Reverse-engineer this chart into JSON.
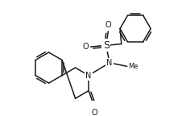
{
  "background": "#ffffff",
  "line_color": "#1a1a1a",
  "line_width": 1.1,
  "font_size": 7.0,
  "figsize": [
    2.32,
    1.44
  ],
  "dpi": 100,
  "xlim": [
    0,
    232
  ],
  "ylim": [
    0,
    144
  ]
}
